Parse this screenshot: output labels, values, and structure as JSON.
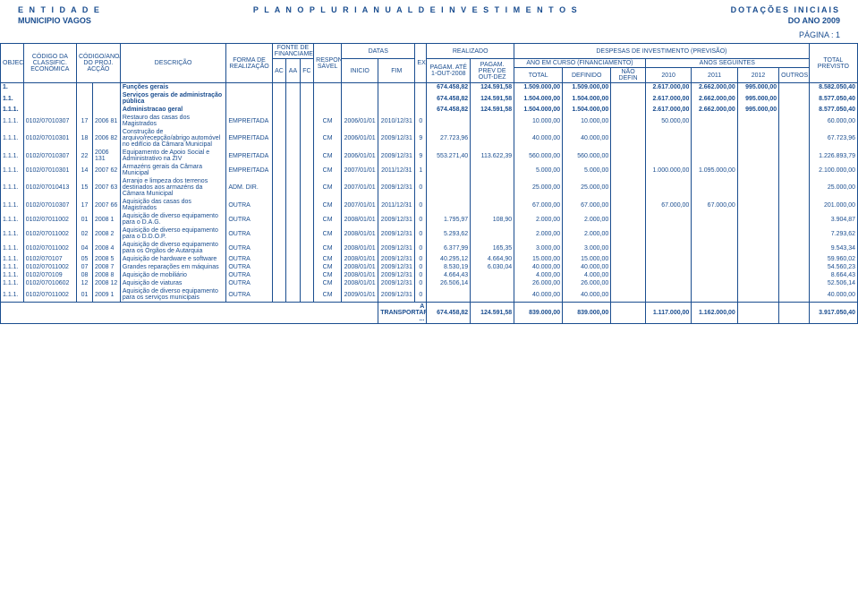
{
  "header": {
    "entidade": "E N T I D A D E",
    "titulo": "P L A N O   P L U R I A N U A L   D E   I N V E S T I M E N T O S",
    "dotacoes": "DOTAÇÕES INICIAIS",
    "municipio": "MUNICIPIO VAGOS",
    "ano": "DO ANO   2009",
    "pagina": "PÁGINA : 1"
  },
  "thead": {
    "objectivo": "OBJECTIVO",
    "classific_top": "CÓDIGO DA CLASSIFIC. ECONÓMICA",
    "ano_num": "CÓDIGO/ANO/NUMERO DO PROJ. ACÇÃO",
    "descricao": "DESCRIÇÃO",
    "forma": "FORMA DE REALIZAÇÃO",
    "fonte": "FONTE DE FINANCIAMENTO",
    "ac": "AC",
    "aa": "AA",
    "fc": "FC",
    "respon": "RESPON SÁVEL",
    "datas": "DATAS",
    "inicio": "INICIO",
    "fim": "FIM",
    "realizado": "REALIZADO",
    "ex": "EX",
    "pagam_ate": "PAGAM. ATÉ 1-OUT-2008",
    "pagam_prev": "PAGAM. PREV DE OUT-DEZ",
    "despesas": "DESPESAS DE INVESTIMENTO (PREVISÃO)",
    "ano_curso": "ANO EM CURSO (FINANCIAMENTO)",
    "anos_seg": "ANOS SEGUINTES",
    "total": "TOTAL",
    "definido": "DEFINIDO",
    "nao_def": "NÃO DEFIN",
    "y2010": "2010",
    "y2011": "2011",
    "y2012": "2012",
    "outros": "OUTROS",
    "total_prev": "TOTAL PREVISTO"
  },
  "rows": [
    {
      "bold": true,
      "obj": "1.",
      "desc": "Funções gerais",
      "pate": "674.458,82",
      "pprev": "124.591,58",
      "tot": "1.509.000,00",
      "def": "1.509.000,00",
      "y2010": "2.617.000,00",
      "y2011": "2.662.000,00",
      "y2012": "995.000,00",
      "tprev": "8.582.050,40"
    },
    {
      "bold": true,
      "obj": "1.1.",
      "desc": "Serviços gerais de administração pública",
      "pate": "674.458,82",
      "pprev": "124.591,58",
      "tot": "1.504.000,00",
      "def": "1.504.000,00",
      "y2010": "2.617.000,00",
      "y2011": "2.662.000,00",
      "y2012": "995.000,00",
      "tprev": "8.577.050,40"
    },
    {
      "bold": true,
      "obj": "1.1.1.",
      "desc": "Administracao geral",
      "pate": "674.458,82",
      "pprev": "124.591,58",
      "tot": "1.504.000,00",
      "def": "1.504.000,00",
      "y2010": "2.617.000,00",
      "y2011": "2.662.000,00",
      "y2012": "995.000,00",
      "tprev": "8.577.050,40"
    },
    {
      "obj": "1.1.1.",
      "clas": "0102/07010307",
      "ano": "17",
      "proj": "2006 81",
      "desc": "Restauro das casas dos Magistrados",
      "forma": "EMPREITADA",
      "resp": "CM",
      "ini": "2006/01/01",
      "fim": "2010/12/31",
      "ex": "0",
      "tot": "10.000,00",
      "def": "10.000,00",
      "y2010": "50.000,00",
      "tprev": "60.000,00"
    },
    {
      "obj": "1.1.1.",
      "clas": "0102/07010301",
      "ano": "18",
      "proj": "2006 82",
      "desc": "Construção de arquivo/recepção/abrigo automóvel no edifício da Câmara Municipal",
      "forma": "EMPREITADA",
      "resp": "CM",
      "ini": "2006/01/01",
      "fim": "2009/12/31",
      "ex": "9",
      "pate": "27.723,96",
      "tot": "40.000,00",
      "def": "40.000,00",
      "tprev": "67.723,96"
    },
    {
      "obj": "1.1.1.",
      "clas": "0102/07010307",
      "ano": "22",
      "proj": "2006 131",
      "desc": "Equipamento de Apoio Social e Administrativo na ZIV",
      "forma": "EMPREITADA",
      "resp": "CM",
      "ini": "2006/01/01",
      "fim": "2009/12/31",
      "ex": "9",
      "pate": "553.271,40",
      "pprev": "113.622,39",
      "tot": "560.000,00",
      "def": "560.000,00",
      "tprev": "1.226.893,79"
    },
    {
      "obj": "1.1.1.",
      "clas": "0102/07010301",
      "ano": "14",
      "proj": "2007 62",
      "desc": "Armazéns gerais da Câmara Municipal",
      "forma": "EMPREITADA",
      "resp": "CM",
      "ini": "2007/01/01",
      "fim": "2011/12/31",
      "ex": "1",
      "tot": "5.000,00",
      "def": "5.000,00",
      "y2010": "1.000.000,00",
      "y2011": "1.095.000,00",
      "tprev": "2.100.000,00"
    },
    {
      "obj": "1.1.1.",
      "clas": "0102/07010413",
      "ano": "15",
      "proj": "2007 63",
      "desc": "Arranjo e limpeza dos terrenos destinados aos armazéns da Câmara Municipal",
      "forma": "ADM. DIR.",
      "resp": "CM",
      "ini": "2007/01/01",
      "fim": "2009/12/31",
      "ex": "0",
      "tot": "25.000,00",
      "def": "25.000,00",
      "tprev": "25.000,00"
    },
    {
      "obj": "1.1.1.",
      "clas": "0102/07010307",
      "ano": "17",
      "proj": "2007 66",
      "desc": "Aquisição das casas dos Magistrados",
      "forma": "OUTRA",
      "resp": "CM",
      "ini": "2007/01/01",
      "fim": "2011/12/31",
      "ex": "0",
      "tot": "67.000,00",
      "def": "67.000,00",
      "y2010": "67.000,00",
      "y2011": "67.000,00",
      "tprev": "201.000,00"
    },
    {
      "obj": "1.1.1.",
      "clas": "0102/07011002",
      "ano": "01",
      "proj": "2008 1",
      "desc": "Aquisição de diverso equipamento para o D.A.G.",
      "forma": "OUTRA",
      "resp": "CM",
      "ini": "2008/01/01",
      "fim": "2009/12/31",
      "ex": "0",
      "pate": "1.795,97",
      "pprev": "108,90",
      "tot": "2.000,00",
      "def": "2.000,00",
      "tprev": "3.904,87"
    },
    {
      "obj": "1.1.1.",
      "clas": "0102/07011002",
      "ano": "02",
      "proj": "2008 2",
      "desc": "Aquisição de diverso equipamento para o D.D.O.P.",
      "forma": "OUTRA",
      "resp": "CM",
      "ini": "2008/01/01",
      "fim": "2009/12/31",
      "ex": "0",
      "pate": "5.293,62",
      "tot": "2.000,00",
      "def": "2.000,00",
      "tprev": "7.293,62"
    },
    {
      "obj": "1.1.1.",
      "clas": "0102/07011002",
      "ano": "04",
      "proj": "2008 4",
      "desc": "Aquisição de diverso equipamento para os Órgãos de Autarquia",
      "forma": "OUTRA",
      "resp": "CM",
      "ini": "2008/01/01",
      "fim": "2009/12/31",
      "ex": "0",
      "pate": "6.377,99",
      "pprev": "165,35",
      "tot": "3.000,00",
      "def": "3.000,00",
      "tprev": "9.543,34"
    },
    {
      "obj": "1.1.1.",
      "clas": "0102/070107",
      "ano": "05",
      "proj": "2008 5",
      "desc": "Aquisição de hardware e software",
      "forma": "OUTRA",
      "resp": "CM",
      "ini": "2008/01/01",
      "fim": "2009/12/31",
      "ex": "0",
      "pate": "40.295,12",
      "pprev": "4.664,90",
      "tot": "15.000,00",
      "def": "15.000,00",
      "tprev": "59.960,02"
    },
    {
      "obj": "1.1.1.",
      "clas": "0102/07011002",
      "ano": "07",
      "proj": "2008 7",
      "desc": "Grandes reparações em máquinas",
      "forma": "OUTRA",
      "resp": "CM",
      "ini": "2008/01/01",
      "fim": "2009/12/31",
      "ex": "0",
      "pate": "8.530,19",
      "pprev": "6.030,04",
      "tot": "40.000,00",
      "def": "40.000,00",
      "tprev": "54.560,23"
    },
    {
      "obj": "1.1.1.",
      "clas": "0102/070109",
      "ano": "08",
      "proj": "2008 8",
      "desc": "Aquisição de mobiliário",
      "forma": "OUTRA",
      "resp": "CM",
      "ini": "2008/01/01",
      "fim": "2009/12/31",
      "ex": "0",
      "pate": "4.664,43",
      "tot": "4.000,00",
      "def": "4.000,00",
      "tprev": "8.664,43"
    },
    {
      "obj": "1.1.1.",
      "clas": "0102/07010602",
      "ano": "12",
      "proj": "2008 12",
      "desc": "Aquisição de viaturas",
      "forma": "OUTRA",
      "resp": "CM",
      "ini": "2008/01/01",
      "fim": "2009/12/31",
      "ex": "0",
      "pate": "26.506,14",
      "tot": "26.000,00",
      "def": "26.000,00",
      "tprev": "52.506,14"
    },
    {
      "obj": "1.1.1.",
      "clas": "0102/07011002",
      "ano": "01",
      "proj": "2009 1",
      "desc": "Aquisição de diverso equipamento para os serviços municipais",
      "forma": "OUTRA",
      "resp": "CM",
      "ini": "2009/01/01",
      "fim": "2009/12/31",
      "ex": "0",
      "tot": "40.000,00",
      "def": "40.000,00",
      "tprev": "40.000,00"
    }
  ],
  "footer": {
    "label": "A TRANSPORTAR ...",
    "pate": "674.458,82",
    "pprev": "124.591,58",
    "tot": "839.000,00",
    "def": "839.000,00",
    "y2010": "1.117.000,00",
    "y2011": "1.162.000,00",
    "tprev": "3.917.050,40"
  }
}
